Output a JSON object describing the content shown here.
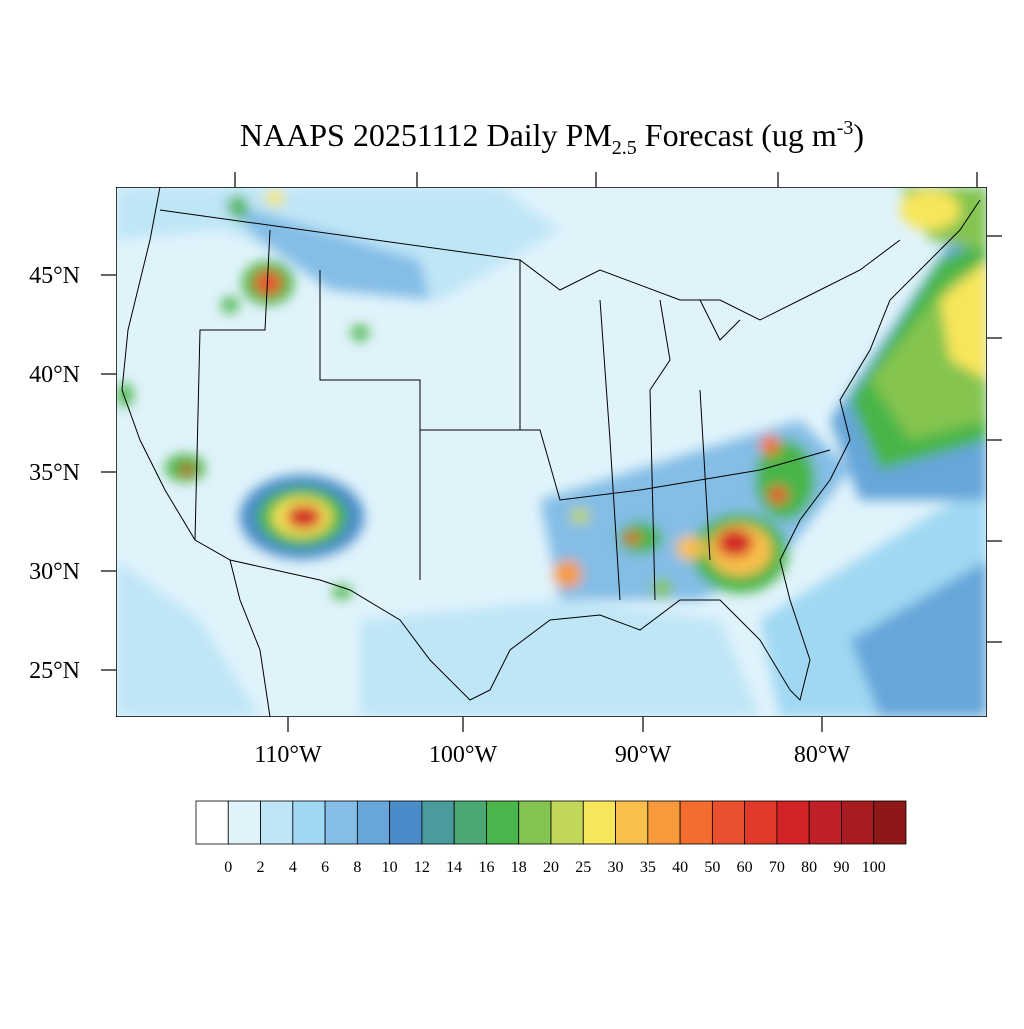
{
  "title": {
    "main": "NAAPS 20251112 Daily PM",
    "subscript": "2.5",
    "middle": " Forecast (ug m",
    "superscript": "-3",
    "end": ")"
  },
  "lat_labels": [
    "45°N",
    "40°N",
    "35°N",
    "30°N",
    "25°N"
  ],
  "lon_labels": [
    "110°W",
    "100°W",
    "90°W",
    "80°W"
  ],
  "colorbar": {
    "labels": [
      "0",
      "2",
      "4",
      "6",
      "8",
      "10",
      "12",
      "14",
      "16",
      "18",
      "20",
      "25",
      "30",
      "35",
      "40",
      "50",
      "60",
      "70",
      "80",
      "90",
      "100"
    ],
    "colors": [
      "#ffffff",
      "#e0f3fb",
      "#bfe6f7",
      "#a0d8f3",
      "#84bde6",
      "#66a6d9",
      "#4a8bc9",
      "#4a9b9c",
      "#4aa872",
      "#4ab54a",
      "#84c450",
      "#c2d65a",
      "#f8e65a",
      "#f9bf4c",
      "#f89a3c",
      "#f46d2f",
      "#e9502d",
      "#df3a2a",
      "#d42328",
      "#bf1f26",
      "#a81b1f",
      "#8e1718"
    ]
  }
}
